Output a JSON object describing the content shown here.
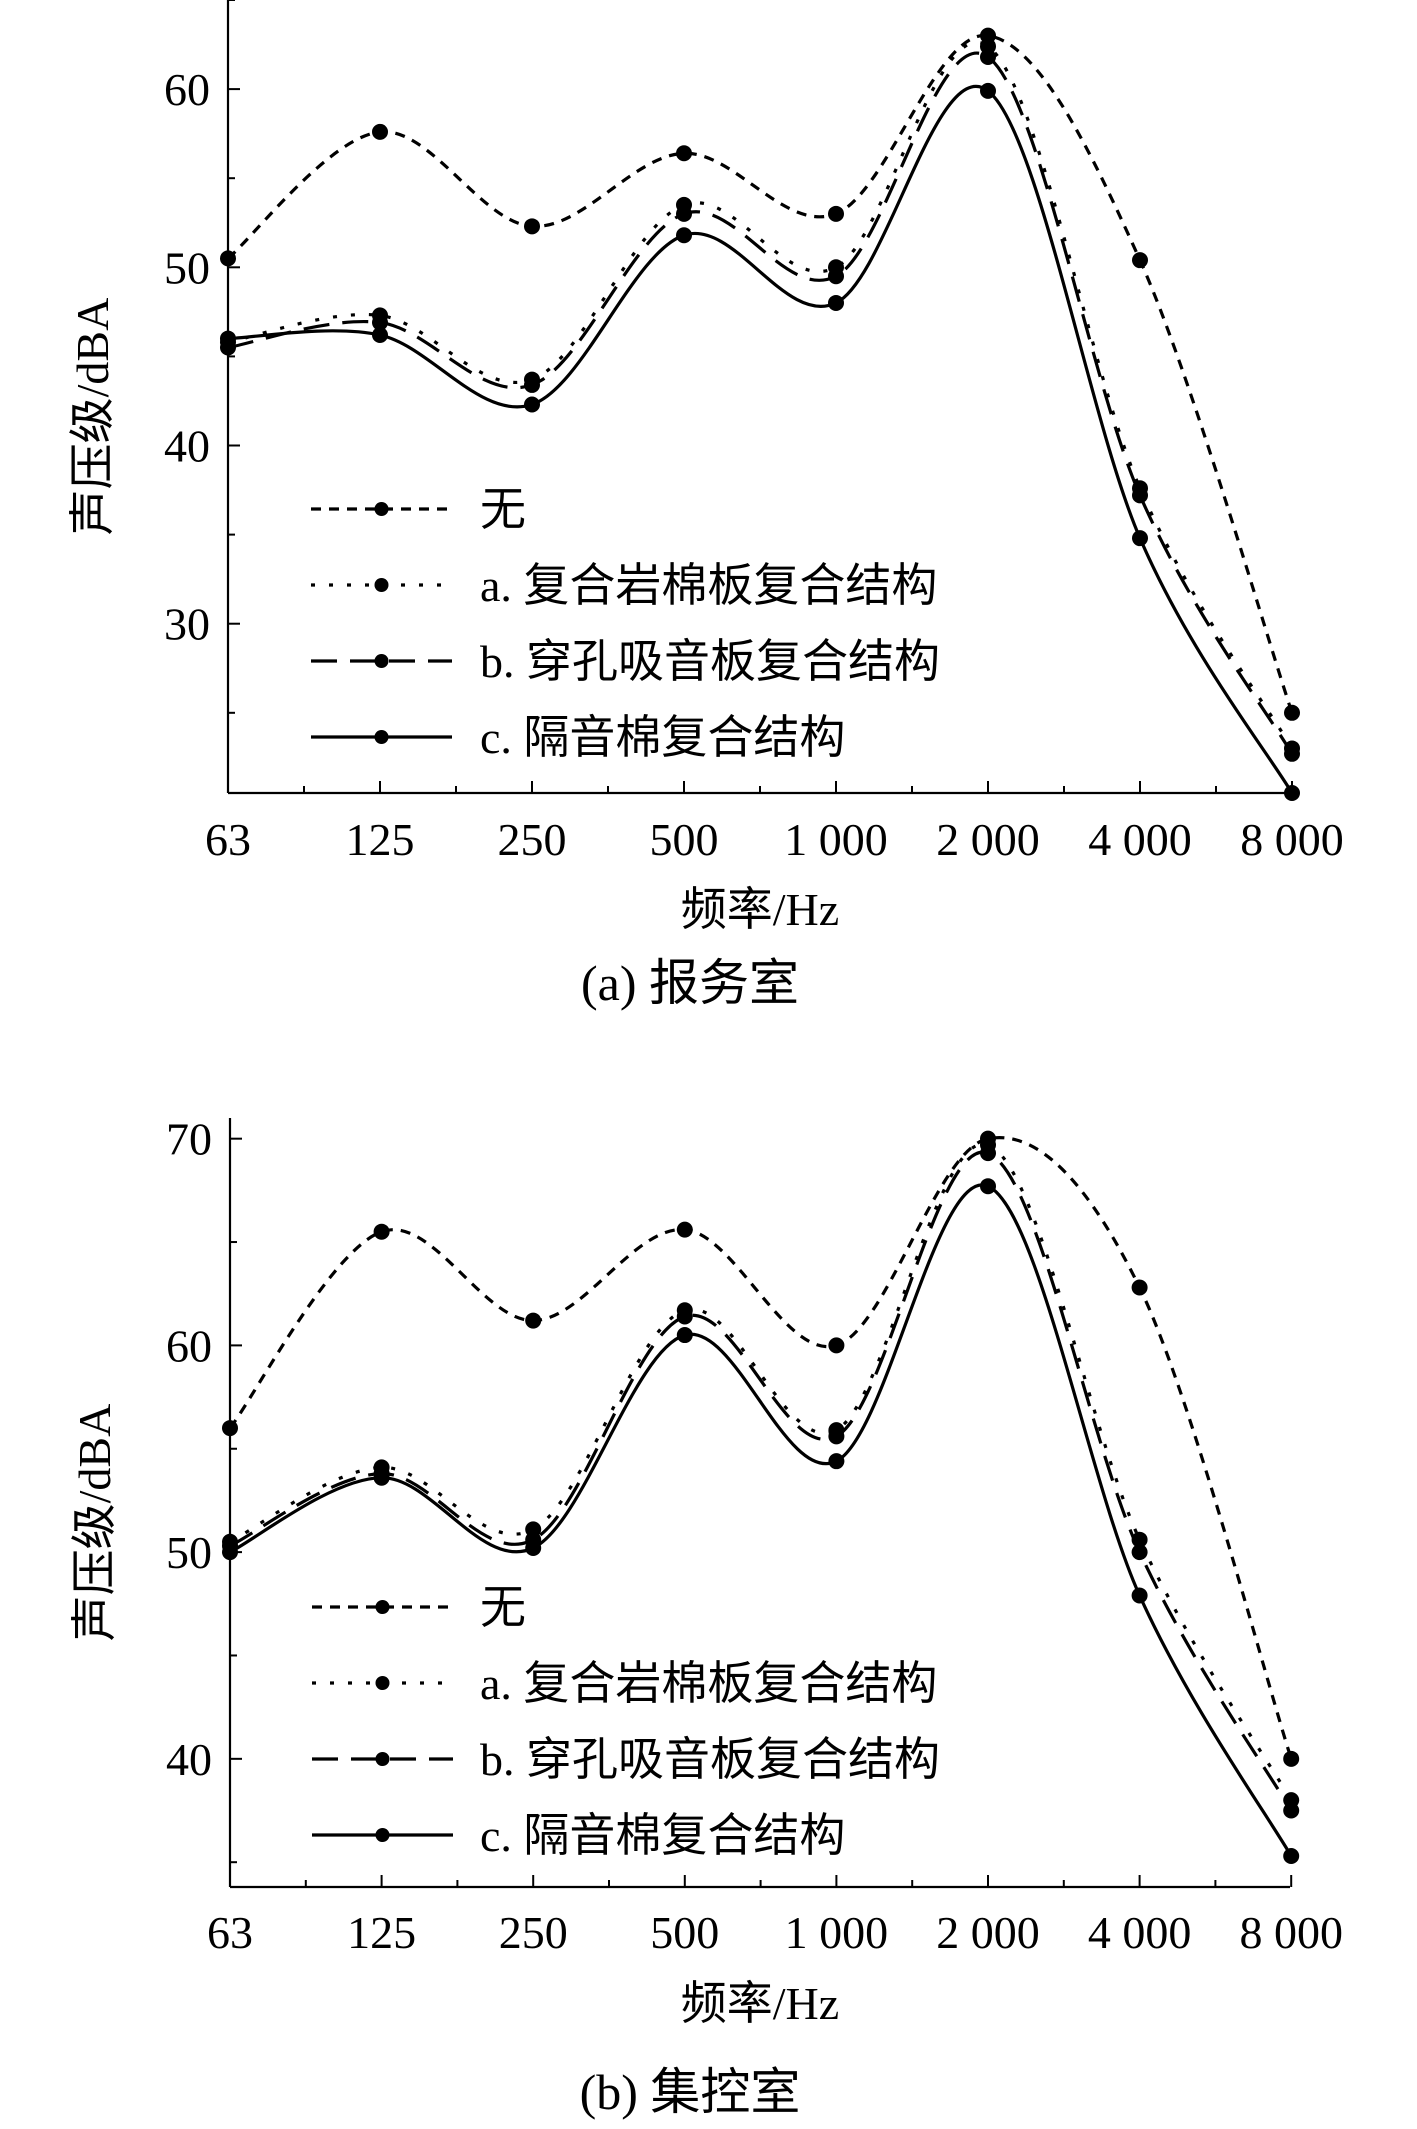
{
  "chart_data": [
    {
      "type": "line",
      "caption": "(a) 报务室",
      "xlabel": "频率/Hz",
      "ylabel": "声压级/dBA",
      "categories": [
        "63",
        "125",
        "250",
        "500",
        "1 000",
        "2 000",
        "4 000",
        "8 000"
      ],
      "ylim": [
        20.5,
        65
      ],
      "yticks": [
        30,
        40,
        50,
        60
      ],
      "legend": {
        "position": "lower-left"
      },
      "series": [
        {
          "name": "无",
          "style": "dash",
          "values": [
            50.5,
            57.6,
            52.3,
            56.4,
            53.0,
            63.0,
            50.4,
            25.0
          ]
        },
        {
          "name": "a. 复合岩棉板复合结构",
          "style": "dashdot",
          "values": [
            45.8,
            47.3,
            43.7,
            53.5,
            50.0,
            62.4,
            37.6,
            23.0
          ]
        },
        {
          "name": "b. 穿孔吸音板复合结构",
          "style": "longdash",
          "values": [
            45.5,
            46.9,
            43.4,
            53.0,
            49.5,
            61.8,
            37.2,
            22.7
          ]
        },
        {
          "name": "c. 隔音棉复合结构",
          "style": "solid",
          "values": [
            46.0,
            46.2,
            42.3,
            51.8,
            48.0,
            59.9,
            34.8,
            20.5
          ]
        }
      ]
    },
    {
      "type": "line",
      "caption": "(b) 集控室",
      "xlabel": "频率/Hz",
      "ylabel": "声压级/dBA",
      "categories": [
        "63",
        "125",
        "250",
        "500",
        "1 000",
        "2 000",
        "4 000",
        "8 000"
      ],
      "ylim": [
        33.8,
        71
      ],
      "yticks": [
        40,
        50,
        60,
        70
      ],
      "legend": {
        "position": "lower-left"
      },
      "series": [
        {
          "name": "无",
          "style": "dash",
          "values": [
            56.0,
            65.5,
            61.2,
            65.6,
            60.0,
            70.0,
            62.8,
            40.0
          ]
        },
        {
          "name": "a. 复合岩棉板复合结构",
          "style": "dashdot",
          "values": [
            50.5,
            54.1,
            51.1,
            61.7,
            55.9,
            69.7,
            50.6,
            38.0
          ]
        },
        {
          "name": "b. 穿孔吸音板复合结构",
          "style": "longdash",
          "values": [
            50.3,
            53.8,
            50.6,
            61.4,
            55.6,
            69.3,
            50.0,
            37.5
          ]
        },
        {
          "name": "c. 隔音棉复合结构",
          "style": "solid",
          "values": [
            50.0,
            53.6,
            50.2,
            60.5,
            54.4,
            67.7,
            47.9,
            35.3
          ]
        }
      ]
    }
  ]
}
